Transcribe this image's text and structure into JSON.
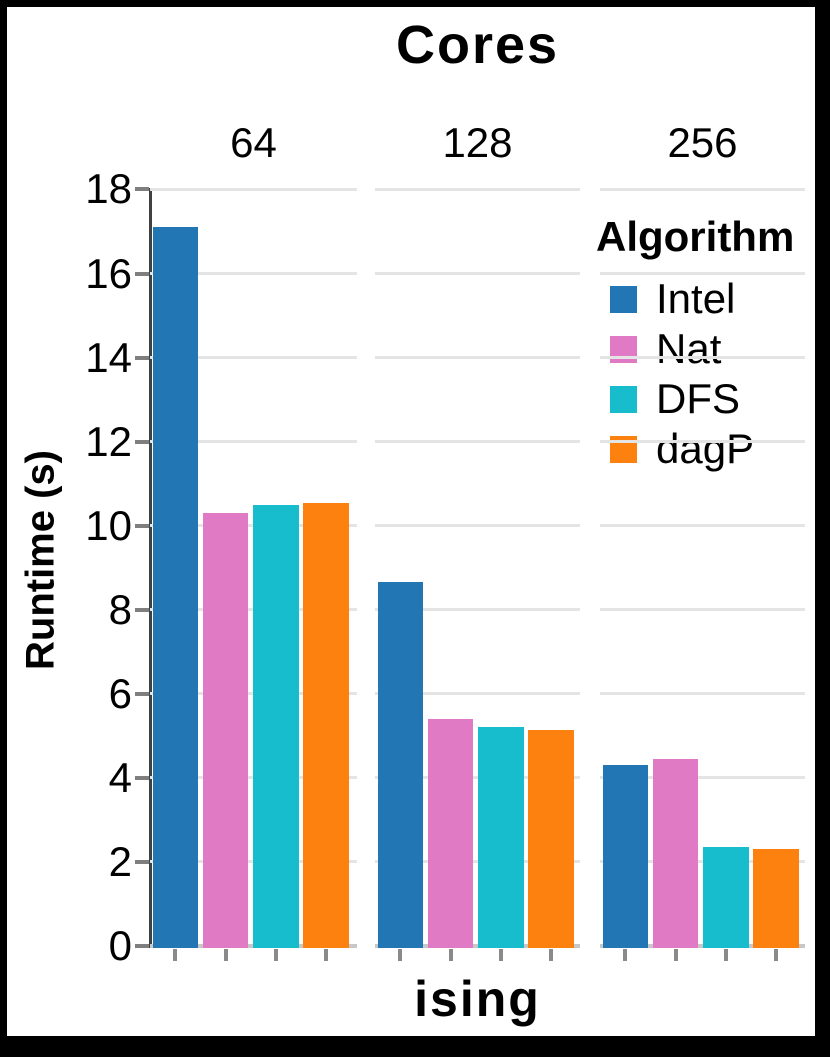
{
  "title": "Cores",
  "x_axis": {
    "label": "ising"
  },
  "y_axis": {
    "label": "Runtime (s)"
  },
  "legend": {
    "title": "Algorithm"
  },
  "chart_data": {
    "type": "bar",
    "title": "Cores",
    "facet_title": "Cores",
    "categories": [
      "64",
      "128",
      "256"
    ],
    "series": [
      {
        "name": "Intel",
        "color": "#2276b4",
        "values": [
          17.1,
          8.65,
          4.3
        ]
      },
      {
        "name": "Nat",
        "color": "#e07ac4",
        "values": [
          10.3,
          5.4,
          4.45
        ]
      },
      {
        "name": "DFS",
        "color": "#18bdcd",
        "values": [
          10.5,
          5.2,
          2.35
        ]
      },
      {
        "name": "dagP",
        "color": "#fd810e",
        "values": [
          10.55,
          5.15,
          2.3
        ]
      }
    ],
    "xlabel": "ising",
    "ylabel": "Runtime (s)",
    "ylim": [
      0,
      18
    ],
    "yticks": [
      0,
      2,
      4,
      6,
      8,
      10,
      12,
      14,
      16,
      18
    ],
    "grid": "horizontal",
    "legend_position": "inside-top-right"
  },
  "colors": {
    "background": "#ffffff",
    "frame_border": "#000000",
    "gridline": "#e4e4e4",
    "baseline": "#c8c8c8",
    "axis_line": "#414141",
    "y_tick": "#7f7f7f",
    "x_minor_tick": "#8a8a8a",
    "text": "#000000"
  }
}
